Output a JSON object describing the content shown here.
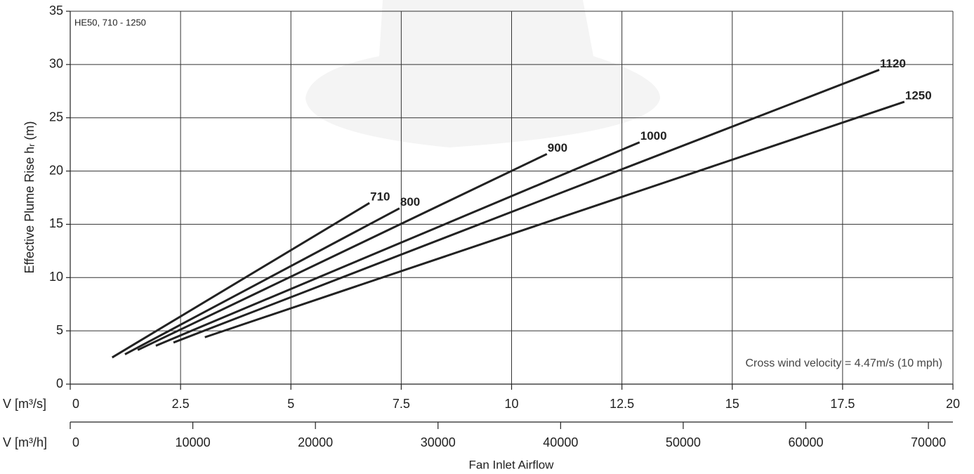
{
  "chart_data": {
    "type": "line",
    "x_label": "V [m³/s]",
    "x2_label": "V [m³/h]",
    "x_axis_title": "Fan Inlet Airflow",
    "y_label": "Effective Plume Rise hᵣ (m)",
    "annotations": [
      "HE50, 710 - 1250",
      "Cross wind velocity = 4.47m/s (10 mph)"
    ],
    "xlim": [
      0,
      20
    ],
    "xticks": [
      0,
      2.5,
      5,
      7.5,
      10,
      12.5,
      15,
      17.5,
      20
    ],
    "x2lim": [
      0,
      72000
    ],
    "x2ticks": [
      0,
      10000,
      20000,
      30000,
      40000,
      50000,
      60000,
      70000
    ],
    "ylim": [
      0,
      35
    ],
    "yticks": [
      0,
      5,
      10,
      15,
      20,
      25,
      30,
      35
    ],
    "grid": true,
    "series": [
      {
        "name": "710",
        "color": "#222222",
        "x": [
          0.95,
          6.78
        ],
        "values": [
          2.5,
          17.0
        ]
      },
      {
        "name": "800",
        "color": "#222222",
        "x": [
          1.24,
          7.46
        ],
        "values": [
          2.8,
          16.5
        ]
      },
      {
        "name": "900",
        "color": "#222222",
        "x": [
          1.53,
          10.8
        ],
        "values": [
          3.2,
          21.6
        ]
      },
      {
        "name": "1000",
        "color": "#222222",
        "x": [
          1.94,
          12.9
        ],
        "values": [
          3.6,
          22.7
        ]
      },
      {
        "name": "1120",
        "color": "#222222",
        "x": [
          2.34,
          18.33
        ],
        "values": [
          3.9,
          29.5
        ]
      },
      {
        "name": "1250",
        "color": "#222222",
        "x": [
          3.05,
          18.9
        ],
        "values": [
          4.4,
          26.5
        ]
      }
    ]
  }
}
